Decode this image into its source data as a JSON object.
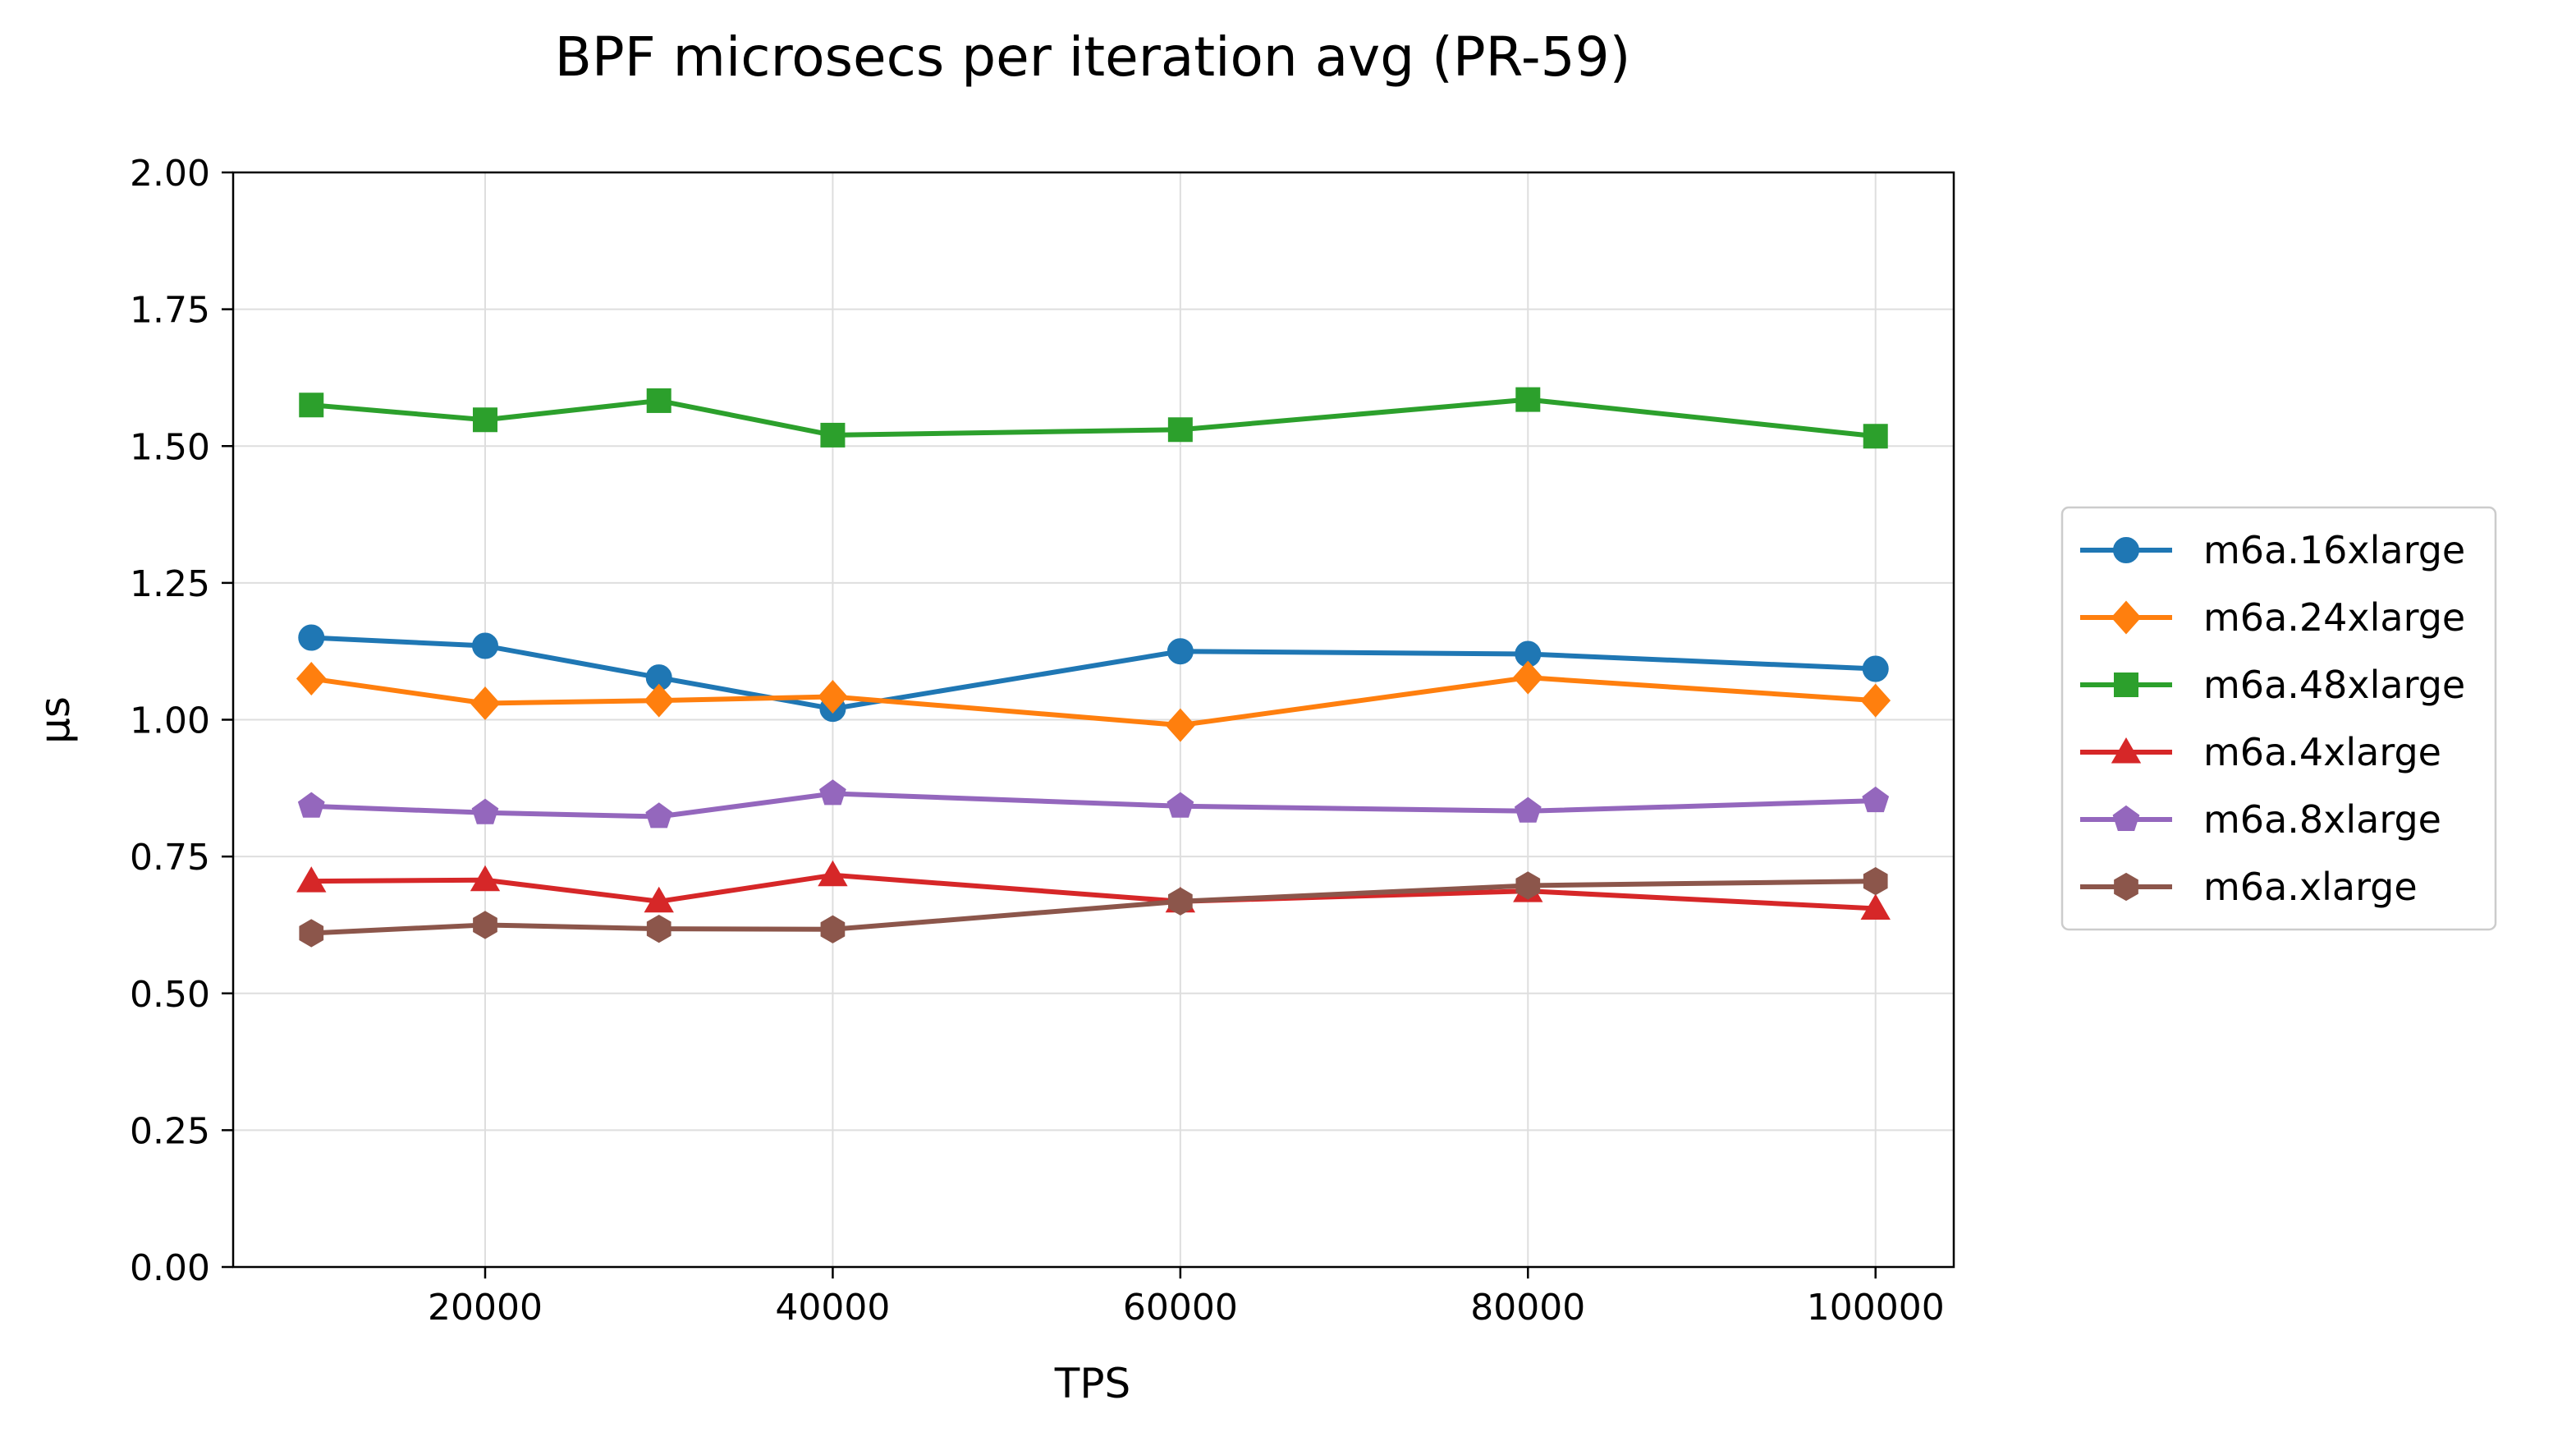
{
  "chart_data": {
    "type": "line",
    "title": "BPF microsecs per iteration avg (PR-59)",
    "xlabel": "TPS",
    "ylabel": "µs",
    "xlim": [
      5500,
      104500
    ],
    "ylim": [
      0,
      2.0
    ],
    "x_ticks": [
      20000,
      40000,
      60000,
      80000,
      100000
    ],
    "x_tick_labels": [
      "20000",
      "40000",
      "60000",
      "80000",
      "100000"
    ],
    "y_ticks": [
      0,
      0.25,
      0.5,
      0.75,
      1.0,
      1.25,
      1.5,
      1.75,
      2.0
    ],
    "y_tick_labels": [
      "0.00",
      "0.25",
      "0.50",
      "0.75",
      "1.00",
      "1.25",
      "1.50",
      "1.75",
      "2.00"
    ],
    "grid": true,
    "legend_position": "right-outside",
    "x": [
      10000,
      20000,
      30000,
      40000,
      60000,
      80000,
      100000
    ],
    "series": [
      {
        "name": "m6a.16xlarge",
        "color": "#1f77b4",
        "marker": "circle",
        "values": [
          1.15,
          1.135,
          1.077,
          1.02,
          1.125,
          1.12,
          1.093
        ]
      },
      {
        "name": "m6a.24xlarge",
        "color": "#ff7f0e",
        "marker": "diamond",
        "values": [
          1.075,
          1.03,
          1.035,
          1.042,
          0.99,
          1.077,
          1.035
        ]
      },
      {
        "name": "m6a.48xlarge",
        "color": "#2ca02c",
        "marker": "square",
        "values": [
          1.575,
          1.548,
          1.583,
          1.52,
          1.53,
          1.585,
          1.518
        ]
      },
      {
        "name": "m6a.4xlarge",
        "color": "#d62728",
        "marker": "triangle",
        "values": [
          0.705,
          0.707,
          0.668,
          0.716,
          0.668,
          0.687,
          0.655
        ]
      },
      {
        "name": "m6a.8xlarge",
        "color": "#9467bd",
        "marker": "pentagon",
        "values": [
          0.842,
          0.83,
          0.823,
          0.865,
          0.842,
          0.833,
          0.852
        ]
      },
      {
        "name": "m6a.xlarge",
        "color": "#8c564b",
        "marker": "hexagon",
        "values": [
          0.61,
          0.625,
          0.618,
          0.617,
          0.668,
          0.697,
          0.705
        ]
      }
    ]
  }
}
